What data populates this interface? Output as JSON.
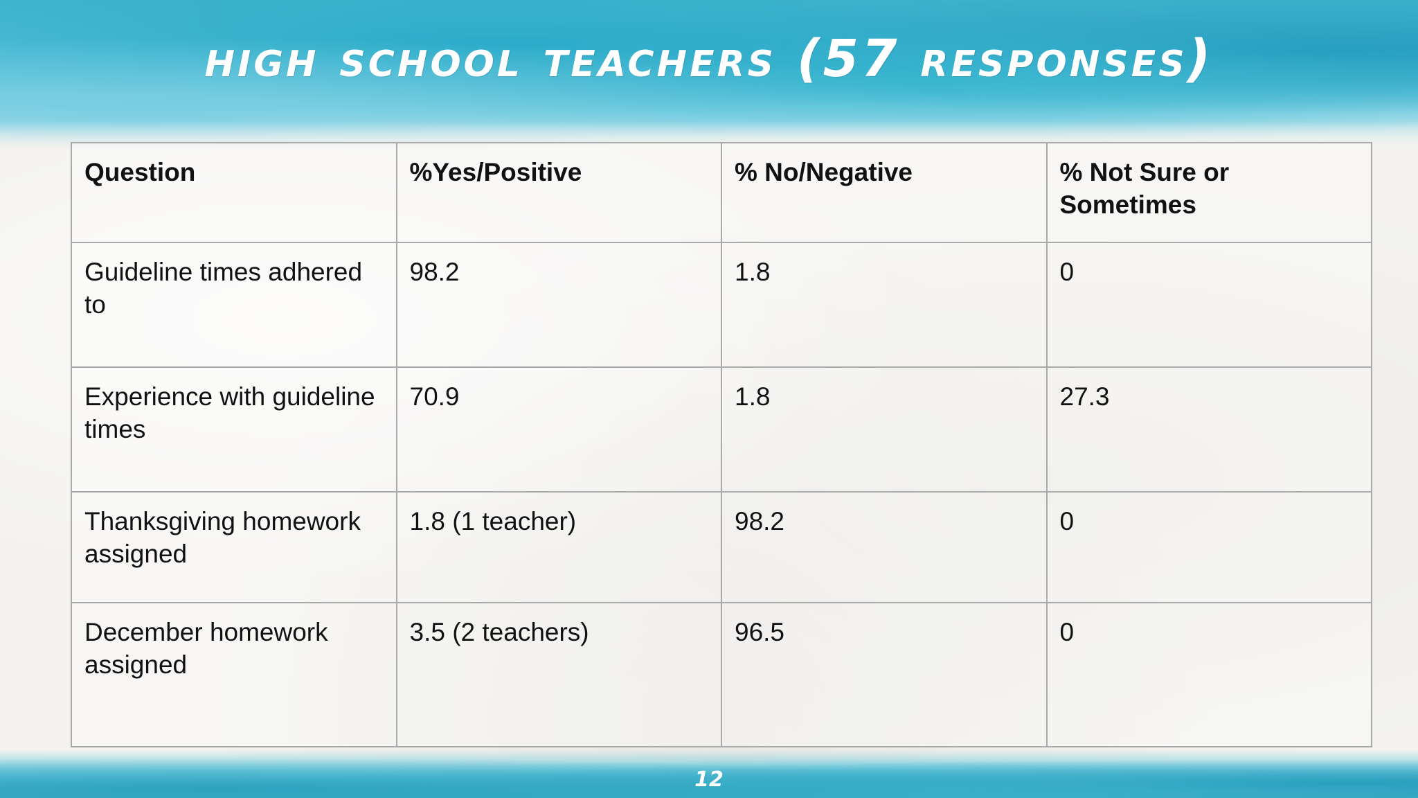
{
  "slide": {
    "title": "HIGH SCHOOL TEACHERS (57 RESPONSES)",
    "page_number": "12"
  },
  "table": {
    "headers": [
      "Question",
      "%Yes/Positive",
      "% No/Negative",
      "% Not Sure or Sometimes"
    ],
    "rows": [
      [
        "Guideline times adhered to",
        "98.2",
        "1.8",
        "0"
      ],
      [
        "Experience with guideline times",
        "70.9",
        "1.8",
        "27.3"
      ],
      [
        "Thanksgiving homework assigned",
        "1.8 (1 teacher)",
        "98.2",
        "0"
      ],
      [
        "December homework assigned",
        "3.5 (2 teachers)",
        "96.5",
        "0"
      ]
    ]
  },
  "colors": {
    "accent_watercolor": "#3fb4cf",
    "title_text": "#ffffff",
    "table_border": "#a9a9a9",
    "text": "#111111"
  }
}
